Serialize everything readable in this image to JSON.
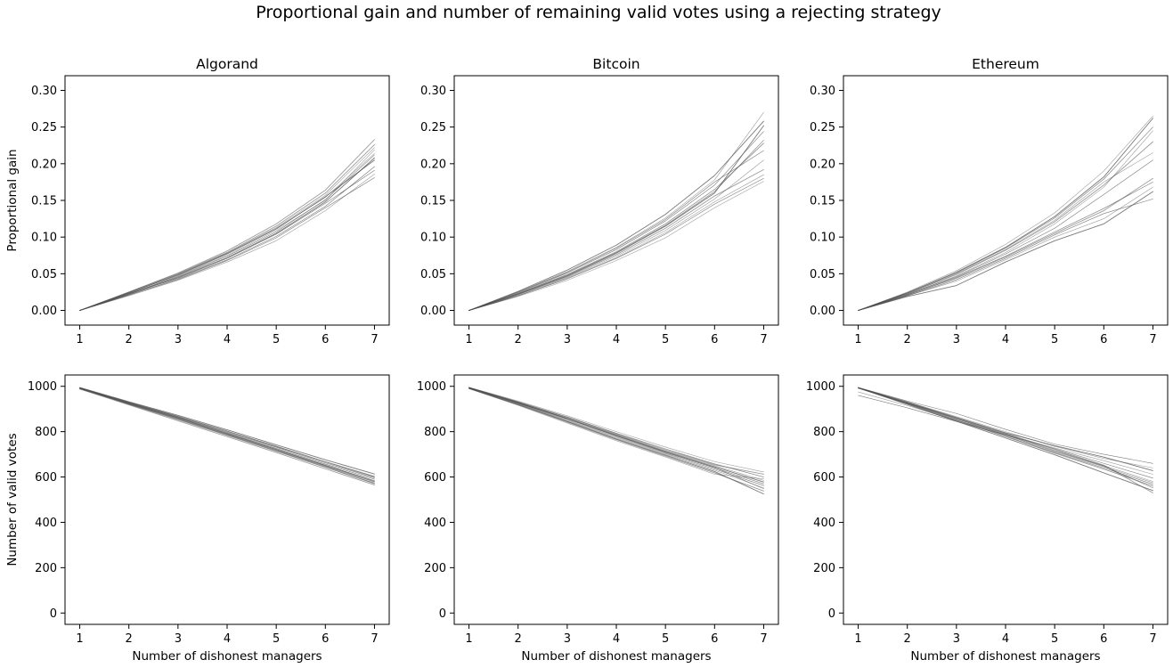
{
  "figure": {
    "title": "Proportional gain and number of remaining valid votes using a rejecting strategy"
  },
  "chart_data": [
    {
      "type": "line",
      "title": "Algorand",
      "xlabel": "",
      "ylabel": "Proportional gain",
      "x": [
        1,
        2,
        3,
        4,
        5,
        6,
        7
      ],
      "xlim": [
        0.7,
        7.3
      ],
      "ylim": [
        -0.02,
        0.32
      ],
      "xticks": [
        1,
        2,
        3,
        4,
        5,
        6,
        7
      ],
      "yticks": [
        0.0,
        0.05,
        0.1,
        0.15,
        0.2,
        0.25,
        0.3
      ],
      "tick_decimals": 2,
      "grid": false,
      "line_color": "#4d4d4d",
      "series": [
        {
          "values": [
            0,
            0.022,
            0.045,
            0.072,
            0.105,
            0.148,
            0.208
          ]
        },
        {
          "values": [
            0,
            0.024,
            0.049,
            0.078,
            0.113,
            0.157,
            0.222
          ]
        },
        {
          "values": [
            0,
            0.021,
            0.043,
            0.069,
            0.101,
            0.142,
            0.196
          ]
        },
        {
          "values": [
            0,
            0.025,
            0.051,
            0.081,
            0.118,
            0.164,
            0.233
          ]
        },
        {
          "values": [
            0,
            0.023,
            0.046,
            0.074,
            0.107,
            0.151,
            0.212
          ]
        },
        {
          "values": [
            0,
            0.02,
            0.041,
            0.066,
            0.095,
            0.136,
            0.186
          ]
        },
        {
          "values": [
            0,
            0.024,
            0.048,
            0.077,
            0.111,
            0.155,
            0.205
          ]
        },
        {
          "values": [
            0,
            0.022,
            0.047,
            0.075,
            0.109,
            0.15,
            0.219
          ]
        },
        {
          "values": [
            0,
            0.023,
            0.044,
            0.071,
            0.104,
            0.146,
            0.191
          ]
        },
        {
          "values": [
            0,
            0.025,
            0.05,
            0.079,
            0.115,
            0.16,
            0.226
          ]
        },
        {
          "values": [
            0,
            0.021,
            0.042,
            0.068,
            0.099,
            0.14,
            0.181
          ]
        },
        {
          "values": [
            0,
            0.024,
            0.049,
            0.078,
            0.112,
            0.154,
            0.214
          ]
        }
      ]
    },
    {
      "type": "line",
      "title": "Bitcoin",
      "xlabel": "",
      "ylabel": "",
      "x": [
        1,
        2,
        3,
        4,
        5,
        6,
        7
      ],
      "xlim": [
        0.7,
        7.3
      ],
      "ylim": [
        -0.02,
        0.32
      ],
      "xticks": [
        1,
        2,
        3,
        4,
        5,
        6,
        7
      ],
      "yticks": [
        0.0,
        0.05,
        0.1,
        0.15,
        0.2,
        0.25,
        0.3
      ],
      "tick_decimals": 2,
      "grid": false,
      "line_color": "#4d4d4d",
      "series": [
        {
          "values": [
            0,
            0.022,
            0.047,
            0.078,
            0.115,
            0.16,
            0.252
          ]
        },
        {
          "values": [
            0,
            0.025,
            0.053,
            0.086,
            0.126,
            0.178,
            0.27
          ]
        },
        {
          "values": [
            0,
            0.02,
            0.043,
            0.071,
            0.104,
            0.145,
            0.18
          ]
        },
        {
          "values": [
            0,
            0.023,
            0.049,
            0.08,
            0.118,
            0.165,
            0.228
          ]
        },
        {
          "values": [
            0,
            0.024,
            0.051,
            0.083,
            0.122,
            0.171,
            0.244
          ]
        },
        {
          "values": [
            0,
            0.019,
            0.041,
            0.068,
            0.099,
            0.14,
            0.176
          ]
        },
        {
          "values": [
            0,
            0.026,
            0.055,
            0.089,
            0.131,
            0.184,
            0.258
          ]
        },
        {
          "values": [
            0,
            0.021,
            0.045,
            0.074,
            0.109,
            0.152,
            0.205
          ]
        },
        {
          "values": [
            0,
            0.023,
            0.048,
            0.079,
            0.116,
            0.162,
            0.232
          ]
        },
        {
          "values": [
            0,
            0.022,
            0.046,
            0.076,
            0.112,
            0.156,
            0.192
          ]
        },
        {
          "values": [
            0,
            0.025,
            0.052,
            0.085,
            0.124,
            0.175,
            0.218
          ]
        },
        {
          "values": [
            0,
            0.02,
            0.044,
            0.072,
            0.106,
            0.148,
            0.185
          ]
        }
      ]
    },
    {
      "type": "line",
      "title": "Ethereum",
      "xlabel": "",
      "ylabel": "",
      "x": [
        1,
        2,
        3,
        4,
        5,
        6,
        7
      ],
      "xlim": [
        0.7,
        7.3
      ],
      "ylim": [
        -0.02,
        0.32
      ],
      "xticks": [
        1,
        2,
        3,
        4,
        5,
        6,
        7
      ],
      "yticks": [
        0.0,
        0.05,
        0.1,
        0.15,
        0.2,
        0.25,
        0.3
      ],
      "tick_decimals": 2,
      "grid": false,
      "line_color": "#4d4d4d",
      "series": [
        {
          "values": [
            0,
            0.024,
            0.052,
            0.086,
            0.128,
            0.182,
            0.262
          ]
        },
        {
          "values": [
            0,
            0.022,
            0.047,
            0.079,
            0.118,
            0.168,
            0.245
          ]
        },
        {
          "values": [
            0,
            0.02,
            0.042,
            0.071,
            0.103,
            0.132,
            0.152
          ]
        },
        {
          "values": [
            0,
            0.023,
            0.049,
            0.082,
            0.121,
            0.171,
            0.23
          ]
        },
        {
          "values": [
            0,
            0.021,
            0.045,
            0.074,
            0.107,
            0.139,
            0.175
          ]
        },
        {
          "values": [
            0,
            0.025,
            0.054,
            0.09,
            0.133,
            0.19,
            0.265
          ]
        },
        {
          "values": [
            0,
            0.019,
            0.034,
            0.066,
            0.095,
            0.118,
            0.162
          ]
        },
        {
          "values": [
            0,
            0.023,
            0.05,
            0.083,
            0.123,
            0.175,
            0.215
          ]
        },
        {
          "values": [
            0,
            0.022,
            0.046,
            0.077,
            0.112,
            0.158,
            0.205
          ]
        },
        {
          "values": [
            0,
            0.021,
            0.044,
            0.073,
            0.105,
            0.136,
            0.18
          ]
        },
        {
          "values": [
            0,
            0.024,
            0.051,
            0.085,
            0.126,
            0.179,
            0.25
          ]
        },
        {
          "values": [
            0,
            0.02,
            0.04,
            0.069,
            0.1,
            0.125,
            0.168
          ]
        }
      ]
    },
    {
      "type": "line",
      "title": "",
      "xlabel": "Number of dishonest managers",
      "ylabel": "Number of valid votes",
      "x": [
        1,
        2,
        3,
        4,
        5,
        6,
        7
      ],
      "xlim": [
        0.7,
        7.3
      ],
      "ylim": [
        -50,
        1050
      ],
      "xticks": [
        1,
        2,
        3,
        4,
        5,
        6,
        7
      ],
      "yticks": [
        0,
        200,
        400,
        600,
        800,
        1000
      ],
      "tick_decimals": 0,
      "grid": false,
      "line_color": "#4d4d4d",
      "series": [
        {
          "values": [
            992,
            925,
            860,
            792,
            722,
            652,
            583
          ]
        },
        {
          "values": [
            990,
            920,
            852,
            783,
            713,
            642,
            572
          ]
        },
        {
          "values": [
            994,
            930,
            868,
            803,
            736,
            668,
            603
          ]
        },
        {
          "values": [
            988,
            918,
            848,
            778,
            708,
            636,
            565
          ]
        },
        {
          "values": [
            993,
            928,
            864,
            798,
            731,
            662,
            596
          ]
        },
        {
          "values": [
            991,
            923,
            856,
            788,
            718,
            648,
            578
          ]
        },
        {
          "values": [
            995,
            932,
            872,
            808,
            742,
            676,
            613
          ]
        },
        {
          "values": [
            989,
            921,
            854,
            785,
            716,
            645,
            574
          ]
        },
        {
          "values": [
            992,
            926,
            862,
            795,
            726,
            657,
            590
          ]
        },
        {
          "values": [
            990,
            924,
            858,
            790,
            720,
            650,
            580
          ]
        },
        {
          "values": [
            994,
            929,
            866,
            801,
            734,
            666,
            600
          ]
        },
        {
          "values": [
            991,
            922,
            855,
            786,
            715,
            644,
            570
          ]
        }
      ]
    },
    {
      "type": "line",
      "title": "",
      "xlabel": "Number of dishonest managers",
      "ylabel": "",
      "x": [
        1,
        2,
        3,
        4,
        5,
        6,
        7
      ],
      "xlim": [
        0.7,
        7.3
      ],
      "ylim": [
        -50,
        1050
      ],
      "xticks": [
        1,
        2,
        3,
        4,
        5,
        6,
        7
      ],
      "yticks": [
        0,
        200,
        400,
        600,
        800,
        1000
      ],
      "tick_decimals": 0,
      "grid": false,
      "line_color": "#4d4d4d",
      "series": [
        {
          "values": [
            994,
            928,
            858,
            784,
            713,
            645,
            578
          ]
        },
        {
          "values": [
            992,
            922,
            848,
            772,
            700,
            630,
            552
          ]
        },
        {
          "values": [
            995,
            932,
            865,
            793,
            724,
            658,
            600
          ]
        },
        {
          "values": [
            990,
            918,
            842,
            765,
            692,
            618,
            538
          ]
        },
        {
          "values": [
            993,
            926,
            855,
            780,
            708,
            640,
            570
          ]
        },
        {
          "values": [
            996,
            935,
            870,
            800,
            732,
            668,
            622
          ]
        },
        {
          "values": [
            991,
            920,
            845,
            768,
            696,
            624,
            525
          ]
        },
        {
          "values": [
            994,
            929,
            860,
            787,
            716,
            650,
            585
          ]
        },
        {
          "values": [
            992,
            924,
            851,
            776,
            704,
            635,
            562
          ]
        },
        {
          "values": [
            995,
            931,
            863,
            790,
            720,
            654,
            612
          ]
        },
        {
          "values": [
            993,
            927,
            857,
            782,
            710,
            642,
            548
          ]
        },
        {
          "values": [
            990,
            916,
            838,
            760,
            688,
            612,
            592
          ]
        }
      ]
    },
    {
      "type": "line",
      "title": "",
      "xlabel": "Number of dishonest managers",
      "ylabel": "",
      "x": [
        1,
        2,
        3,
        4,
        5,
        6,
        7
      ],
      "xlim": [
        0.7,
        7.3
      ],
      "ylim": [
        -50,
        1050
      ],
      "xticks": [
        1,
        2,
        3,
        4,
        5,
        6,
        7
      ],
      "yticks": [
        0,
        200,
        400,
        600,
        800,
        1000
      ],
      "tick_decimals": 0,
      "grid": false,
      "line_color": "#4d4d4d",
      "series": [
        {
          "values": [
            994,
            930,
            862,
            795,
            738,
            688,
            628
          ]
        },
        {
          "values": [
            993,
            925,
            855,
            784,
            712,
            645,
            575
          ]
        },
        {
          "values": [
            995,
            935,
            880,
            810,
            745,
            700,
            660
          ]
        },
        {
          "values": [
            992,
            922,
            850,
            778,
            705,
            635,
            560
          ]
        },
        {
          "values": [
            960,
            905,
            845,
            785,
            725,
            660,
            595
          ]
        },
        {
          "values": [
            994,
            928,
            858,
            790,
            718,
            650,
            580
          ]
        },
        {
          "values": [
            993,
            920,
            846,
            772,
            698,
            618,
            540
          ]
        },
        {
          "values": [
            995,
            932,
            866,
            800,
            735,
            682,
            640
          ]
        },
        {
          "values": [
            992,
            924,
            852,
            780,
            708,
            640,
            568
          ]
        },
        {
          "values": [
            994,
            927,
            860,
            792,
            722,
            652,
            530
          ]
        },
        {
          "values": [
            993,
            926,
            857,
            786,
            715,
            648,
            552
          ]
        },
        {
          "values": [
            975,
            915,
            850,
            788,
            728,
            672,
            612
          ]
        }
      ]
    }
  ]
}
